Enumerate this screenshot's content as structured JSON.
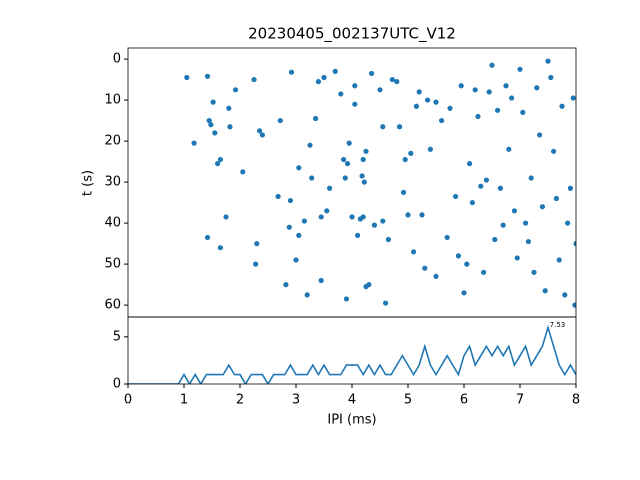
{
  "chart_data": [
    {
      "type": "scatter",
      "title": "20230405_002137UTC_V12",
      "ylabel": "t (s)",
      "color": "#1f77b4",
      "xlim": [
        0,
        8
      ],
      "ylim": [
        62.9,
        -2.7
      ],
      "yticks": [
        0,
        10,
        20,
        30,
        40,
        50,
        60
      ],
      "x": [
        1.05,
        1.18,
        1.42,
        1.45,
        1.48,
        1.52,
        1.55,
        1.6,
        1.65,
        1.75,
        1.8,
        1.82,
        1.92,
        2.05,
        1.65,
        1.42,
        2.25,
        2.28,
        2.3,
        2.35,
        2.4,
        2.68,
        2.72,
        2.82,
        2.88,
        2.9,
        2.92,
        3.0,
        3.05,
        3.05,
        3.15,
        3.2,
        3.25,
        3.28,
        3.35,
        3.4,
        3.45,
        3.45,
        3.5,
        3.55,
        3.6,
        3.7,
        3.8,
        3.85,
        3.88,
        3.9,
        3.92,
        3.95,
        4.0,
        4.05,
        4.05,
        4.1,
        4.15,
        4.2,
        4.18,
        4.2,
        4.22,
        4.25,
        4.25,
        4.3,
        4.35,
        4.4,
        4.5,
        4.55,
        4.55,
        4.6,
        4.65,
        4.72,
        4.8,
        4.85,
        4.92,
        4.95,
        5.0,
        5.05,
        5.1,
        5.15,
        5.2,
        5.25,
        5.3,
        5.35,
        5.4,
        5.5,
        5.5,
        5.6,
        5.7,
        5.75,
        5.85,
        5.9,
        5.95,
        6.0,
        6.05,
        6.1,
        6.15,
        6.2,
        6.25,
        6.3,
        6.35,
        6.4,
        6.45,
        6.5,
        6.55,
        6.6,
        6.65,
        6.7,
        6.75,
        6.8,
        6.85,
        6.9,
        6.95,
        7.0,
        7.05,
        7.1,
        7.15,
        7.2,
        7.25,
        7.3,
        7.35,
        7.4,
        7.45,
        7.5,
        7.55,
        7.6,
        7.65,
        7.7,
        7.75,
        7.8,
        7.85,
        7.9,
        7.95,
        7.98,
        8.0
      ],
      "values": [
        4.5,
        20.5,
        4.2,
        15,
        16,
        10.5,
        18,
        25.5,
        24.5,
        38.5,
        12,
        16.5,
        7.5,
        27.5,
        46,
        43.5,
        5,
        50,
        45,
        17.5,
        18.5,
        33.5,
        15,
        55,
        41,
        34.5,
        3.2,
        49,
        26.5,
        43,
        39.5,
        57.5,
        21,
        29,
        14.5,
        5.5,
        38.5,
        54,
        4.5,
        37,
        31.5,
        3,
        8.5,
        24.5,
        29,
        58.5,
        25.5,
        20.5,
        38.5,
        11,
        6.5,
        43,
        39,
        38.5,
        28.5,
        24.5,
        30,
        22.5,
        55.5,
        55,
        3.5,
        40.5,
        7.5,
        16.5,
        39.5,
        59.5,
        44,
        5,
        5.5,
        16.5,
        32.5,
        24.5,
        38,
        23,
        47,
        11.5,
        8,
        38,
        51,
        10,
        22,
        53,
        10.5,
        15,
        43.5,
        12,
        33.5,
        48,
        6.5,
        57,
        50,
        25.5,
        35,
        7.5,
        14,
        31,
        52,
        29.5,
        8,
        1.5,
        44,
        12.5,
        31.5,
        40.5,
        6.5,
        22,
        9.5,
        37,
        48.5,
        2.5,
        13,
        40,
        44.5,
        29,
        52,
        7,
        18.5,
        36,
        56.5,
        0.5,
        4.5,
        22.5,
        34,
        49,
        11.5,
        57.5,
        40,
        31.5,
        9.5,
        60,
        45
      ]
    },
    {
      "type": "line",
      "xlabel": "IPI (ms)",
      "color": "#1f77b4",
      "annotation": "7.53",
      "xlim": [
        0,
        8
      ],
      "xticks": [
        0,
        1,
        2,
        3,
        4,
        5,
        6,
        7,
        8
      ],
      "ylim": [
        0,
        7.1
      ],
      "yticks": [
        0,
        5
      ],
      "x": [
        0,
        0.1,
        0.2,
        0.3,
        0.4,
        0.5,
        0.6,
        0.7,
        0.8,
        0.9,
        1.0,
        1.1,
        1.2,
        1.3,
        1.4,
        1.5,
        1.6,
        1.7,
        1.8,
        1.9,
        2.0,
        2.1,
        2.2,
        2.3,
        2.4,
        2.5,
        2.6,
        2.7,
        2.8,
        2.9,
        3.0,
        3.1,
        3.2,
        3.3,
        3.4,
        3.5,
        3.6,
        3.7,
        3.8,
        3.9,
        4.0,
        4.1,
        4.2,
        4.3,
        4.4,
        4.5,
        4.6,
        4.7,
        4.8,
        4.9,
        5.0,
        5.1,
        5.2,
        5.3,
        5.4,
        5.5,
        5.6,
        5.7,
        5.8,
        5.9,
        6.0,
        6.1,
        6.2,
        6.3,
        6.4,
        6.5,
        6.6,
        6.7,
        6.8,
        6.9,
        7.0,
        7.1,
        7.2,
        7.3,
        7.4,
        7.5,
        7.6,
        7.7,
        7.8,
        7.9,
        8.0
      ],
      "values": [
        0,
        0,
        0,
        0,
        0,
        0,
        0,
        0,
        0,
        0,
        1,
        0,
        1,
        0,
        1,
        1,
        1,
        1,
        2,
        1,
        1,
        0,
        1,
        1,
        1,
        0,
        1,
        1,
        1,
        2,
        1,
        1,
        1,
        2,
        1,
        2,
        1,
        1,
        1,
        2,
        2,
        2,
        1,
        2,
        1,
        2,
        1,
        1,
        2,
        3,
        2,
        1,
        2,
        4,
        2,
        1,
        2,
        3,
        2,
        1,
        3,
        4,
        2,
        3,
        4,
        3,
        4,
        3,
        4,
        2,
        3,
        4,
        2,
        3,
        4,
        6,
        4,
        2,
        1,
        2,
        1
      ]
    }
  ]
}
